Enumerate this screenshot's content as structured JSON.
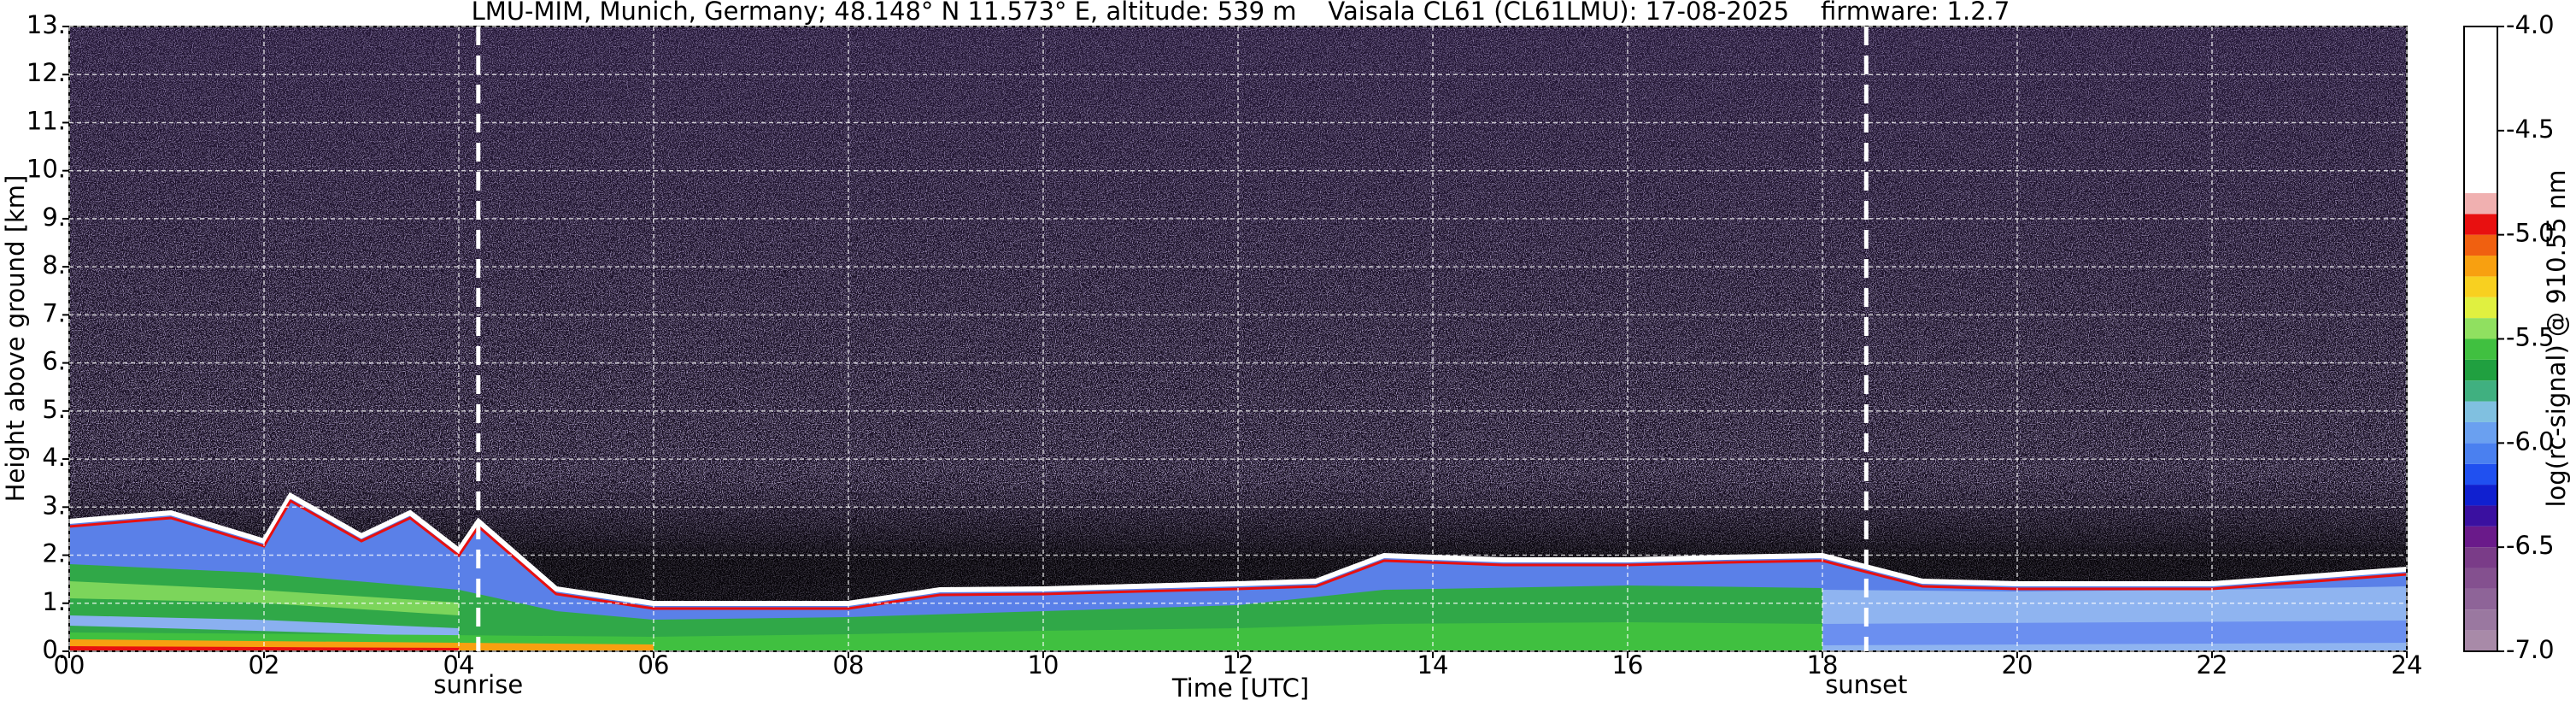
{
  "chart_data": {
    "type": "heatmap",
    "title": "LMU-MIM, Munich, Germany; 48.148° N 11.573° E, altitude: 539 m    Vaisala CL61 (CL61LMU): 17-08-2025    firmware: 1.2.7",
    "xlabel": "Time [UTC]",
    "ylabel": "Height above ground [km]",
    "colorbar_label": "log(rc-signal) @ 910.55 nm",
    "xlim": [
      0,
      24
    ],
    "xticks": [
      {
        "value": 0,
        "label": "00"
      },
      {
        "value": 2,
        "label": "02"
      },
      {
        "value": 4,
        "label": "04"
      },
      {
        "value": 6,
        "label": "06"
      },
      {
        "value": 8,
        "label": "08"
      },
      10,
      12,
      14,
      16,
      18,
      20,
      22,
      24
    ],
    "ylim": [
      0,
      13
    ],
    "yticks": [
      {
        "value": 0,
        "label": "0."
      },
      {
        "value": 1,
        "label": "1."
      },
      {
        "value": 2,
        "label": "2."
      },
      {
        "value": 3,
        "label": "3."
      },
      {
        "value": 4,
        "label": "4."
      },
      {
        "value": 5,
        "label": "5."
      },
      {
        "value": 6,
        "label": "6."
      },
      {
        "value": 7,
        "label": "7."
      },
      {
        "value": 8,
        "label": "8."
      },
      {
        "value": 9,
        "label": "9."
      },
      {
        "value": 10,
        "label": "10."
      },
      {
        "value": 11,
        "label": "11."
      },
      {
        "value": 12,
        "label": "12."
      },
      {
        "value": 13,
        "label": "13."
      }
    ],
    "clim": [
      -7,
      -4
    ],
    "cticks": [
      {
        "value": -4,
        "label": "-4.0"
      },
      -4.5,
      {
        "value": -5,
        "label": "-5.0"
      },
      -5.5,
      {
        "value": -6,
        "label": "-6.0"
      },
      -6.5,
      {
        "value": -7,
        "label": "-7.0"
      }
    ],
    "cmap_bounds": [
      -7,
      -6.9,
      -6.8,
      -6.7,
      -6.6,
      -6.5,
      -6.4,
      -6.3,
      -6.2,
      -6.1,
      -6.0,
      -5.9,
      -5.8,
      -5.7,
      -5.6,
      -5.5,
      -5.4,
      -5.3,
      -5.2,
      -5.1,
      -5.0,
      -4.9,
      -4.8,
      -4.0
    ],
    "cmap_colors": [
      "#a88aa8",
      "#9a78a0",
      "#8e6498",
      "#84508f",
      "#7a3c88",
      "#6a1a8a",
      "#3a10a0",
      "#1020d0",
      "#2050f0",
      "#4a80f0",
      "#6aa0f0",
      "#80c0e0",
      "#40b080",
      "#20a040",
      "#40c040",
      "#90e060",
      "#e0f040",
      "#f8d020",
      "#f8a010",
      "#f06010",
      "#e81010",
      "#f0b0b0",
      "#ffffff"
    ],
    "annotations": [
      {
        "x": 4.2,
        "label": "sunrise"
      },
      {
        "x": 18.45,
        "label": "sunset"
      }
    ],
    "grid": true
  }
}
